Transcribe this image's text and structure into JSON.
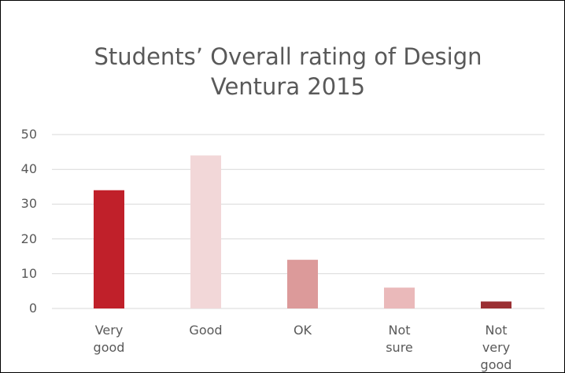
{
  "chart_data": {
    "type": "bar",
    "title": "Students’ Overall rating of Design Ventura 2015",
    "categories": [
      "Very good",
      "Good",
      "OK",
      "Not sure",
      "Not very good"
    ],
    "values": [
      34,
      44,
      14,
      6,
      2
    ],
    "colors": [
      "#c0202a",
      "#f2d7d8",
      "#dc9a9a",
      "#eab9ba",
      "#9b3034"
    ],
    "ylim": [
      0,
      50
    ],
    "yticks": [
      0,
      10,
      20,
      30,
      40,
      50
    ],
    "grid": true
  }
}
